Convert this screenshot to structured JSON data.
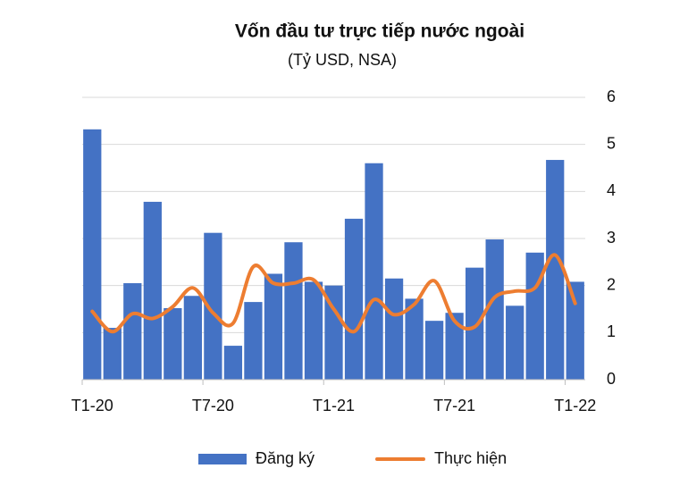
{
  "chart_data": {
    "type": "bar",
    "title": "Vốn đầu tư trực tiếp nước ngoài",
    "subtitle": "(Tỷ USD, NSA)",
    "categories": [
      "T1-20",
      null,
      null,
      null,
      null,
      null,
      "T7-20",
      null,
      null,
      null,
      null,
      null,
      "T1-21",
      null,
      null,
      null,
      null,
      null,
      "T7-21",
      null,
      null,
      null,
      null,
      null,
      "T1-22"
    ],
    "series": [
      {
        "name": "Đăng ký",
        "type": "bar",
        "color": "#4472c4",
        "values": [
          5.32,
          1.1,
          2.05,
          3.78,
          1.52,
          1.78,
          3.12,
          0.72,
          1.65,
          2.25,
          2.92,
          2.08,
          2.0,
          3.42,
          4.6,
          2.15,
          1.72,
          1.25,
          1.42,
          2.38,
          2.98,
          1.57,
          2.7,
          4.67,
          2.08
        ]
      },
      {
        "name": "Thực hiện",
        "type": "line",
        "color": "#ed7d31",
        "values": [
          1.45,
          1.02,
          1.4,
          1.3,
          1.55,
          1.95,
          1.42,
          1.2,
          2.4,
          2.05,
          2.05,
          2.12,
          1.5,
          1.02,
          1.7,
          1.38,
          1.6,
          2.1,
          1.25,
          1.12,
          1.75,
          1.88,
          1.95,
          2.65,
          1.62
        ]
      }
    ],
    "ylim": [
      0,
      6
    ],
    "yticks": [
      0,
      1,
      2,
      3,
      4,
      5,
      6
    ],
    "grid": true,
    "legend": "bottom"
  }
}
